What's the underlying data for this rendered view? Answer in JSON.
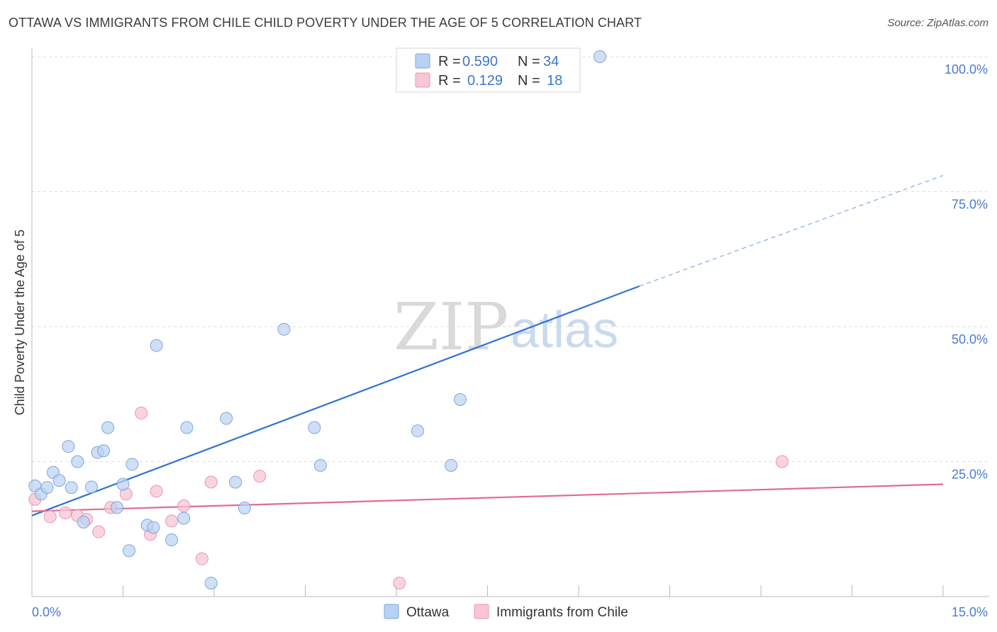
{
  "title": "OTTAWA VS IMMIGRANTS FROM CHILE CHILD POVERTY UNDER THE AGE OF 5 CORRELATION CHART",
  "source": "Source: ZipAtlas.com",
  "watermark": {
    "zip": "ZIP",
    "atlas": "atlas"
  },
  "colors": {
    "ottawa_fill": "#b9d1f2",
    "ottawa_stroke": "#7fa6dc",
    "ottawa_line": "#2f73d0",
    "chile_fill": "#f7c6d5",
    "chile_stroke": "#e896b1",
    "chile_line": "#e36a94",
    "tick_label": "#4a7cc9",
    "grid": "#dedede"
  },
  "legend": {
    "rows": [
      {
        "r_label": "R =",
        "r_value": "0.590",
        "n_label": "N =",
        "n_value": "34"
      },
      {
        "r_label": "R =",
        "r_value": "0.129",
        "n_label": "N =",
        "n_value": "18"
      }
    ]
  },
  "chart_data": {
    "type": "scatter",
    "ylabel": "Child Poverty Under the Age of 5",
    "xlabel": "",
    "xlim": [
      0,
      15
    ],
    "ylim": [
      0,
      100
    ],
    "x_tick_labels": [
      "0.0%",
      "15.0%"
    ],
    "y_tick_labels": [
      "25.0%",
      "50.0%",
      "75.0%",
      "100.0%"
    ],
    "y_ticks": [
      25,
      50,
      75,
      100
    ],
    "grid": true,
    "legend_position": "top-center",
    "series": [
      {
        "name": "Ottawa",
        "points": [
          [
            0.05,
            20.5
          ],
          [
            0.15,
            19.0
          ],
          [
            0.25,
            20.2
          ],
          [
            0.35,
            23.0
          ],
          [
            0.45,
            21.5
          ],
          [
            0.6,
            27.8
          ],
          [
            0.65,
            20.2
          ],
          [
            0.75,
            25.0
          ],
          [
            0.85,
            13.8
          ],
          [
            0.98,
            20.3
          ],
          [
            1.08,
            26.7
          ],
          [
            1.18,
            27.0
          ],
          [
            1.25,
            31.3
          ],
          [
            1.4,
            16.5
          ],
          [
            1.5,
            20.8
          ],
          [
            1.6,
            8.5
          ],
          [
            1.65,
            24.5
          ],
          [
            1.9,
            13.2
          ],
          [
            2.0,
            12.8
          ],
          [
            2.05,
            46.5
          ],
          [
            2.3,
            10.5
          ],
          [
            2.5,
            14.5
          ],
          [
            2.55,
            31.3
          ],
          [
            2.95,
            2.5
          ],
          [
            3.2,
            33.0
          ],
          [
            3.35,
            21.2
          ],
          [
            3.5,
            16.4
          ],
          [
            4.15,
            49.5
          ],
          [
            4.65,
            31.3
          ],
          [
            4.75,
            24.3
          ],
          [
            6.35,
            30.7
          ],
          [
            6.9,
            24.3
          ],
          [
            7.05,
            36.5
          ],
          [
            9.35,
            100.0
          ]
        ],
        "trend": {
          "x": [
            0,
            10.0
          ],
          "y": [
            15.0,
            57.5
          ]
        },
        "trend_dashed": {
          "x": [
            10.0,
            15.0
          ],
          "y": [
            57.5,
            78.0
          ]
        }
      },
      {
        "name": "Immigrants from Chile",
        "points": [
          [
            0.05,
            18.0
          ],
          [
            0.3,
            14.8
          ],
          [
            0.55,
            15.5
          ],
          [
            0.75,
            15.0
          ],
          [
            0.9,
            14.3
          ],
          [
            1.1,
            12.0
          ],
          [
            1.3,
            16.5
          ],
          [
            1.55,
            19.0
          ],
          [
            1.8,
            34.0
          ],
          [
            1.95,
            11.5
          ],
          [
            2.05,
            19.5
          ],
          [
            2.3,
            14.0
          ],
          [
            2.5,
            16.8
          ],
          [
            2.8,
            7.0
          ],
          [
            2.95,
            21.2
          ],
          [
            3.75,
            22.3
          ],
          [
            6.05,
            2.5
          ],
          [
            12.35,
            25.0
          ]
        ],
        "trend": {
          "x": [
            0,
            15.0
          ],
          "y": [
            15.8,
            20.8
          ]
        }
      }
    ]
  }
}
